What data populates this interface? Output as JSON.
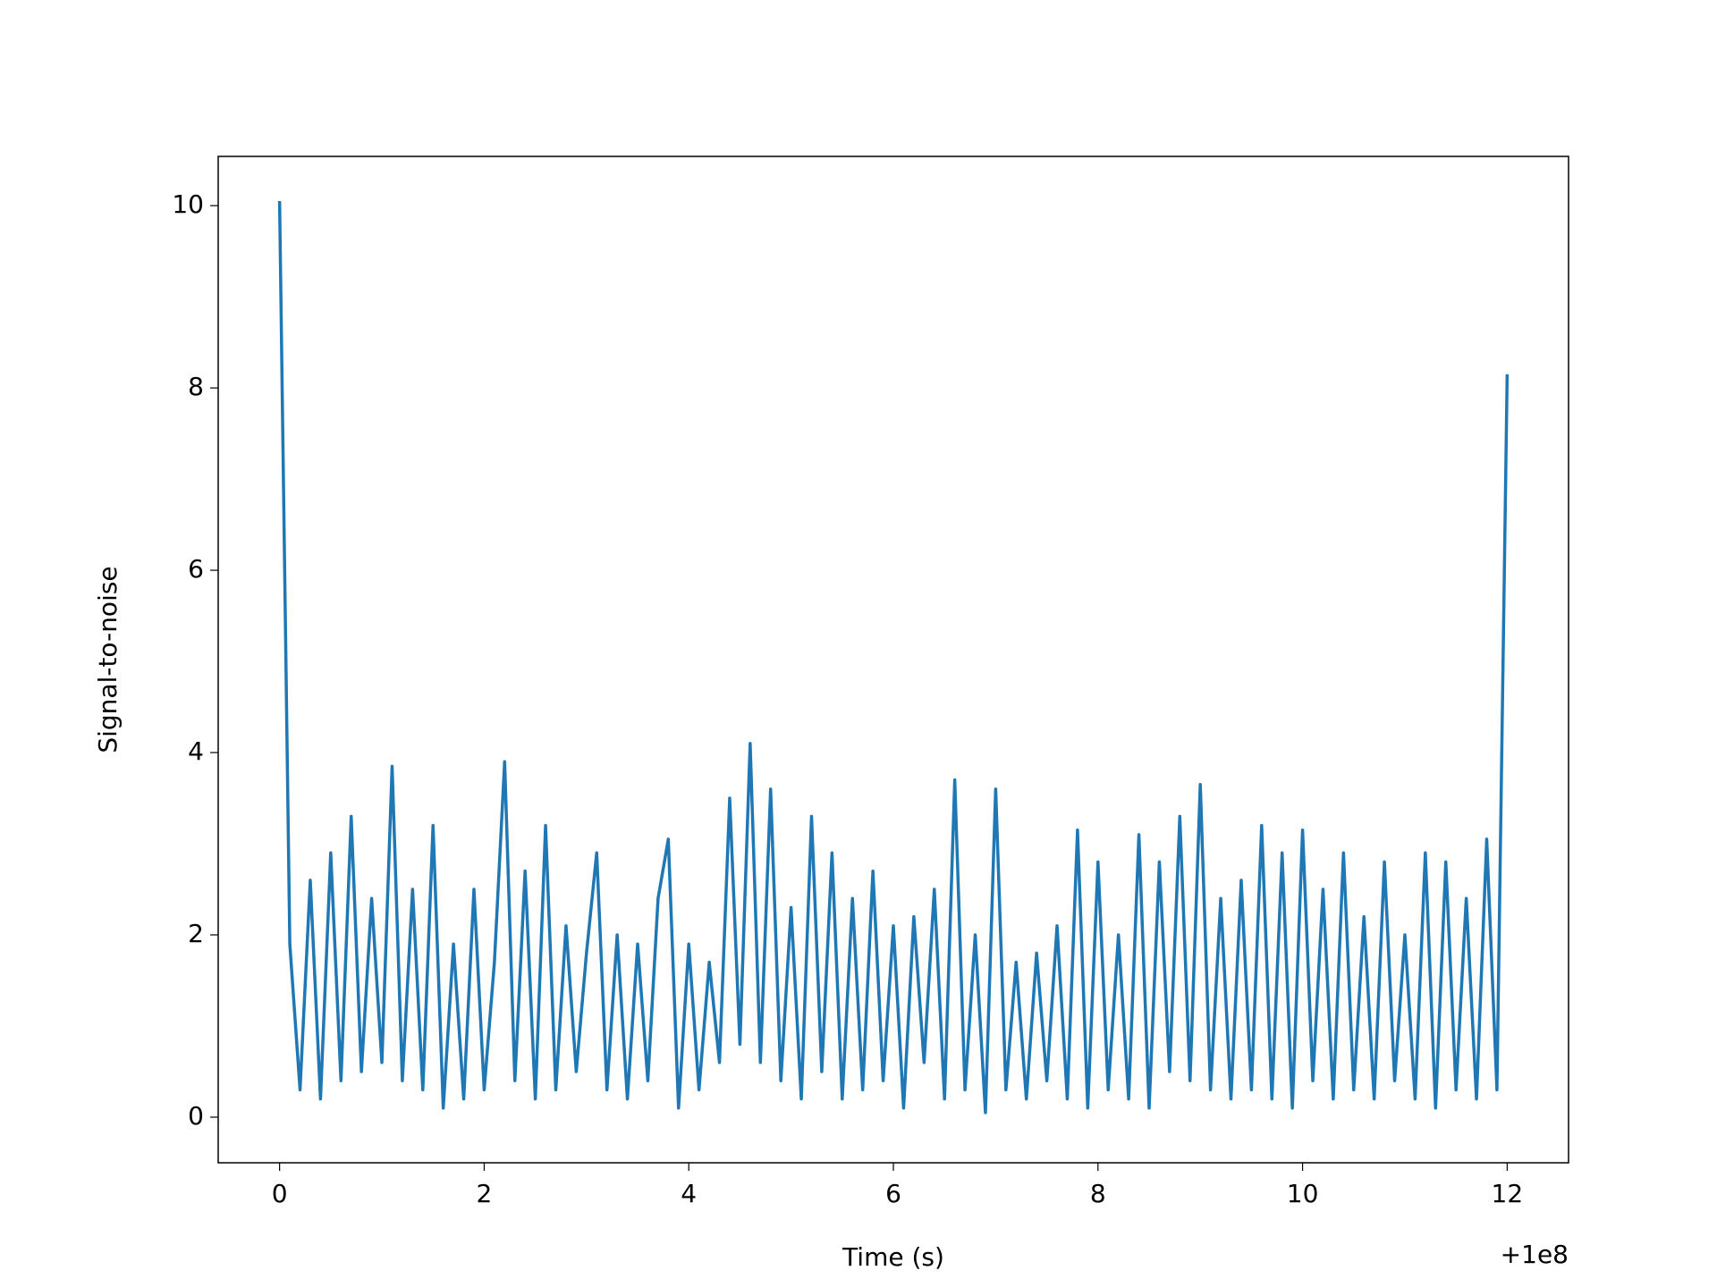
{
  "chart_data": {
    "type": "line",
    "xlabel": "Time (s)",
    "ylabel": "Signal-to-noise",
    "x_offset_label": "+1e8",
    "x": [
      0,
      0.1,
      0.2,
      0.3,
      0.4,
      0.5,
      0.6,
      0.7,
      0.8,
      0.9,
      1,
      1.1,
      1.2,
      1.3,
      1.4,
      1.5,
      1.6,
      1.7,
      1.8,
      1.9,
      2,
      2.1,
      2.2,
      2.3,
      2.4,
      2.5,
      2.6,
      2.7,
      2.8,
      2.9,
      3,
      3.1,
      3.2,
      3.3,
      3.4,
      3.5,
      3.6,
      3.7,
      3.8,
      3.9,
      4,
      4.1,
      4.2,
      4.3,
      4.4,
      4.5,
      4.6,
      4.7,
      4.8,
      4.9,
      5,
      5.1,
      5.2,
      5.3,
      5.4,
      5.5,
      5.6,
      5.7,
      5.8,
      5.9,
      6,
      6.1,
      6.2,
      6.3,
      6.4,
      6.5,
      6.6,
      6.7,
      6.8,
      6.9,
      7,
      7.1,
      7.2,
      7.3,
      7.4,
      7.5,
      7.6,
      7.7,
      7.8,
      7.9,
      8,
      8.1,
      8.2,
      8.3,
      8.4,
      8.5,
      8.6,
      8.7,
      8.8,
      8.9,
      9,
      9.1,
      9.2,
      9.3,
      9.4,
      9.5,
      9.6,
      9.7,
      9.8,
      9.9,
      10,
      10.1,
      10.2,
      10.3,
      10.4,
      10.5,
      10.6,
      10.7,
      10.8,
      10.9,
      11,
      11.1,
      11.2,
      11.3,
      11.4,
      11.5,
      11.6,
      11.7,
      11.8,
      11.9,
      12
    ],
    "series": [
      {
        "color": "#1f77b4",
        "values": [
          10.05,
          1.9,
          0.3,
          2.6,
          0.2,
          2.9,
          0.4,
          3.3,
          0.5,
          2.4,
          0.6,
          3.85,
          0.4,
          2.5,
          0.3,
          3.2,
          0.1,
          1.9,
          0.2,
          2.5,
          0.3,
          1.7,
          3.9,
          0.4,
          2.7,
          0.2,
          3.2,
          0.3,
          2.1,
          0.5,
          1.8,
          2.9,
          0.3,
          2.0,
          0.2,
          1.9,
          0.4,
          2.4,
          3.05,
          0.1,
          1.9,
          0.3,
          1.7,
          0.6,
          3.5,
          0.8,
          4.1,
          0.6,
          3.6,
          0.4,
          2.3,
          0.2,
          3.3,
          0.5,
          2.9,
          0.2,
          2.4,
          0.3,
          2.7,
          0.4,
          2.1,
          0.1,
          2.2,
          0.6,
          2.5,
          0.2,
          3.7,
          0.3,
          2.0,
          0.05,
          3.6,
          0.3,
          1.7,
          0.2,
          1.8,
          0.4,
          2.1,
          0.2,
          3.15,
          0.1,
          2.8,
          0.3,
          2.0,
          0.2,
          3.1,
          0.1,
          2.8,
          0.5,
          3.3,
          0.4,
          3.65,
          0.3,
          2.4,
          0.2,
          2.6,
          0.3,
          3.2,
          0.2,
          2.9,
          0.1,
          3.15,
          0.4,
          2.5,
          0.2,
          2.9,
          0.3,
          2.2,
          0.2,
          2.8,
          0.4,
          2.0,
          0.2,
          2.9,
          0.1,
          2.8,
          0.3,
          2.4,
          0.2,
          3.05,
          0.3,
          8.15
        ]
      }
    ],
    "xlim": [
      -0.6,
      12.6
    ],
    "ylim": [
      -0.5,
      10.54
    ],
    "xticks": [
      0,
      2,
      4,
      6,
      8,
      10,
      12
    ],
    "yticks": [
      0,
      2,
      4,
      6,
      8,
      10
    ],
    "grid": false
  }
}
